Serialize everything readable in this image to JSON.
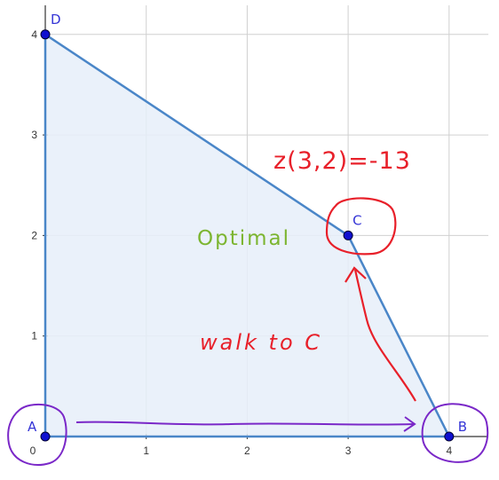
{
  "axes": {
    "x_ticks": [
      "0",
      "1",
      "2",
      "3",
      "4"
    ],
    "y_ticks": [
      "1",
      "2",
      "3",
      "4"
    ],
    "xlim": [
      0,
      4
    ],
    "ylim": [
      0,
      4
    ],
    "grid": true
  },
  "region": {
    "fill": "#e6eef9",
    "edge_color": "#4a86c8",
    "vertices": [
      {
        "label": "A",
        "x": 0,
        "y": 0
      },
      {
        "label": "B",
        "x": 4,
        "y": 0
      },
      {
        "label": "C",
        "x": 3,
        "y": 2
      },
      {
        "label": "D",
        "x": 0,
        "y": 4
      }
    ]
  },
  "point_style": {
    "fill": "#1010d0",
    "label_color": "#3535d6"
  },
  "annotations": {
    "objective": "z(3,2)=-13",
    "optimal": "Optimal",
    "walk": "walk to C",
    "red": "#e8202a",
    "green": "#7cb530",
    "purple": "#7a28c8"
  }
}
